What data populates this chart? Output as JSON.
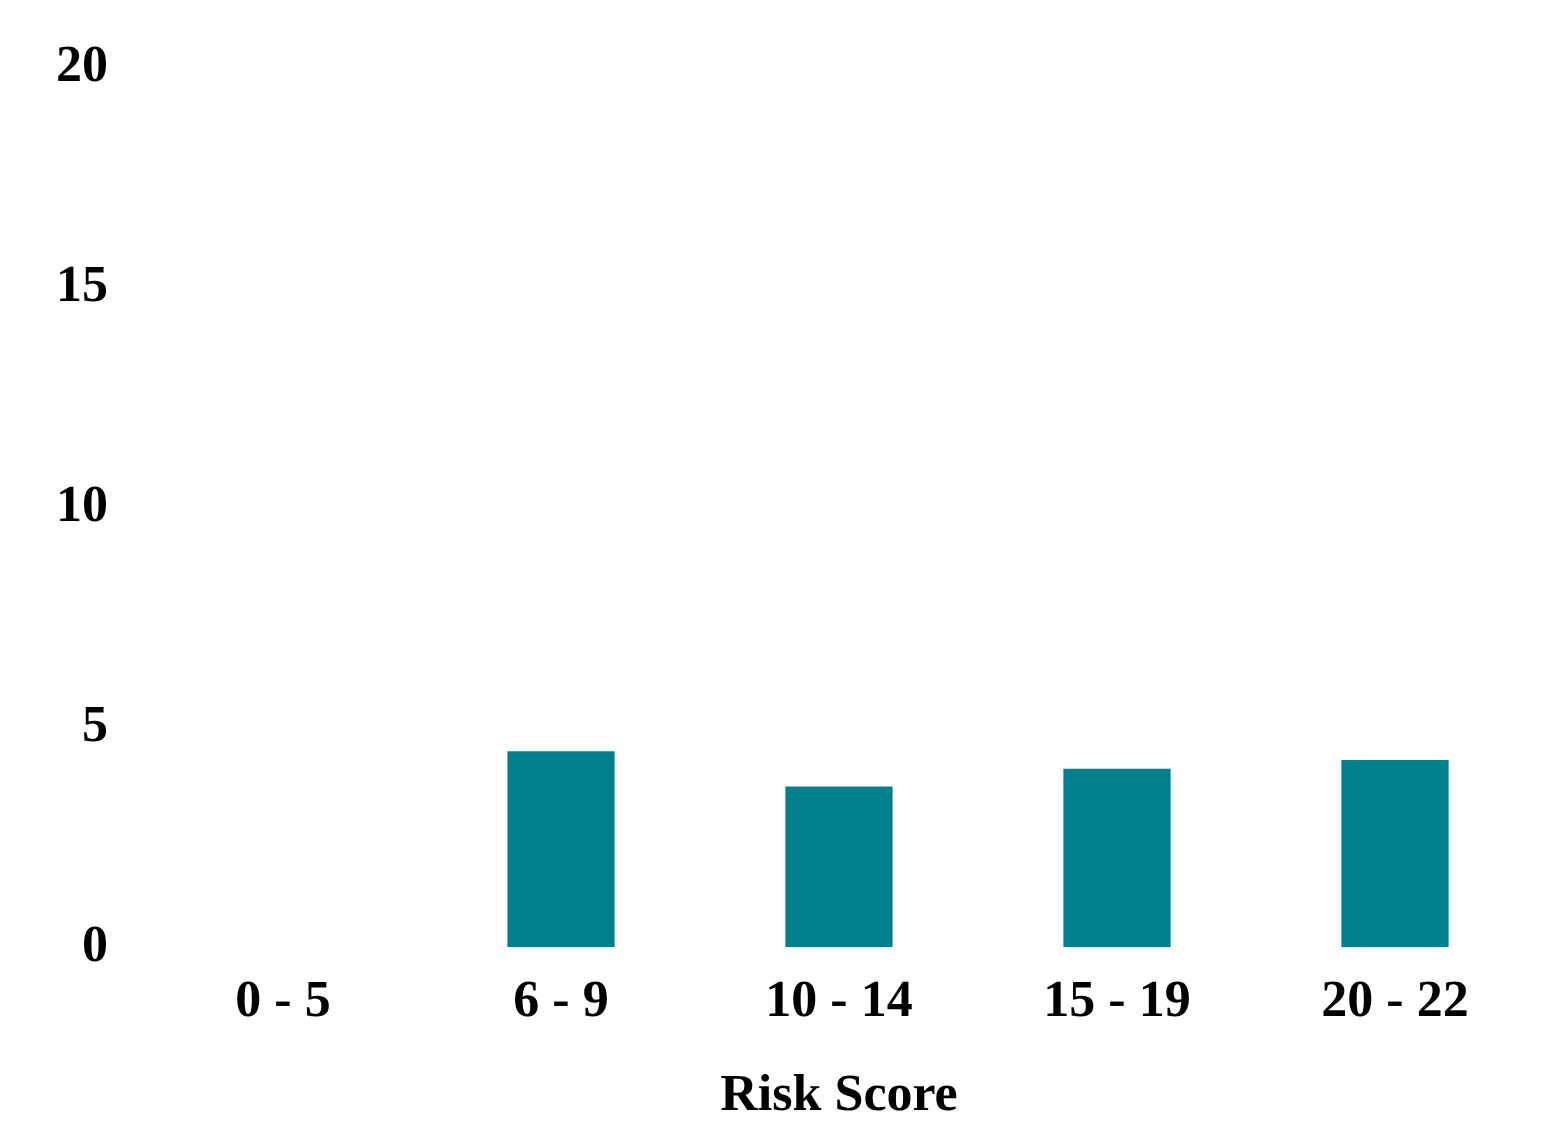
{
  "chart_data": {
    "type": "bar",
    "xlabel": "Risk Score",
    "categories": [
      "0 - 5",
      "6 - 9",
      "10 - 14",
      "15 - 19",
      "20 - 22"
    ],
    "values": [
      0,
      4.5,
      3.7,
      4.1,
      4.3
    ],
    "color": "#00808c",
    "ylim": [
      0,
      20
    ],
    "yticks": [
      0,
      5,
      10,
      15,
      20
    ],
    "grid": false,
    "legend": false
  }
}
